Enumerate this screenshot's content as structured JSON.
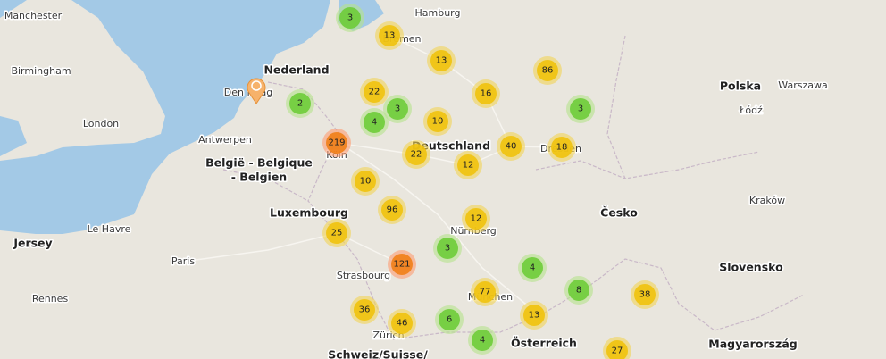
{
  "places": [
    {
      "label": "Manchester"
    },
    {
      "label": "Birmingham"
    },
    {
      "label": "London"
    },
    {
      "label": "Nederland"
    },
    {
      "label": "Den Haag"
    },
    {
      "label": "Antwerpen"
    },
    {
      "label": "België - Belgique"
    },
    {
      "label": "- Belgien"
    },
    {
      "label": "Luxembourg"
    },
    {
      "label": "Jersey"
    },
    {
      "label": "Le Havre"
    },
    {
      "label": "Paris"
    },
    {
      "label": "Rennes"
    },
    {
      "label": "Strasbourg"
    },
    {
      "label": "Hamburg"
    },
    {
      "label": "Bremen"
    },
    {
      "label": "Deutschland"
    },
    {
      "label": "Köln"
    },
    {
      "label": "Dresden"
    },
    {
      "label": "Nürnberg"
    },
    {
      "label": "München"
    },
    {
      "label": "Zürich"
    },
    {
      "label": "Österreich"
    },
    {
      "label": "Polska"
    },
    {
      "label": "Warszawa"
    },
    {
      "label": "Łódź"
    },
    {
      "label": "Kraków"
    },
    {
      "label": "Česko"
    },
    {
      "label": "Slovensko"
    },
    {
      "label": "Magyarország"
    },
    {
      "label": "Schweiz/Suisse/"
    }
  ],
  "clusters": [
    {
      "count": 3
    },
    {
      "count": 13
    },
    {
      "count": 13
    },
    {
      "count": 86
    },
    {
      "count": 22
    },
    {
      "count": 3
    },
    {
      "count": 2
    },
    {
      "count": 4
    },
    {
      "count": 16
    },
    {
      "count": 3
    },
    {
      "count": 10
    },
    {
      "count": 219
    },
    {
      "count": 40
    },
    {
      "count": 18
    },
    {
      "count": 22
    },
    {
      "count": 12
    },
    {
      "count": 10
    },
    {
      "count": 96
    },
    {
      "count": 12
    },
    {
      "count": 25
    },
    {
      "count": 3
    },
    {
      "count": 121
    },
    {
      "count": 4
    },
    {
      "count": 8
    },
    {
      "count": 38
    },
    {
      "count": 77
    },
    {
      "count": 36
    },
    {
      "count": 13
    },
    {
      "count": 46
    },
    {
      "count": 6
    },
    {
      "count": 4
    },
    {
      "count": 27
    }
  ]
}
